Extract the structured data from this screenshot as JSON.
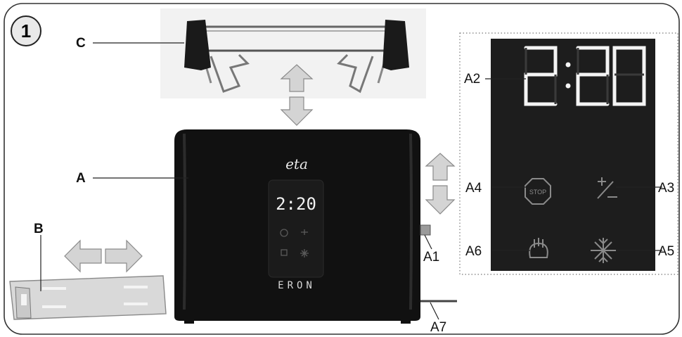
{
  "figure_number": "1",
  "labels": {
    "C": "C",
    "A": "A",
    "B": "B",
    "A1": "A1",
    "A2": "A2",
    "A3": "A3",
    "A4": "A4",
    "A5": "A5",
    "A6": "A6",
    "A7": "A7"
  },
  "toaster": {
    "logo_text": "eta",
    "model_name": "ERON",
    "display_time": "2:20",
    "stop_icon_text": "STOP",
    "plus_minus_text": "+/−"
  },
  "colors": {
    "frame": "#333333",
    "toaster_body": "#111111",
    "display_digits": "#f2f2f2",
    "arrow_fill": "#d4d4d4",
    "arrow_stroke": "#8a8a8a",
    "rack_handle": "#1a1a1a"
  },
  "icons": [
    "stop-icon",
    "plus-minus-icon",
    "bun-warming-icon",
    "defrost-snowflake-icon"
  ]
}
